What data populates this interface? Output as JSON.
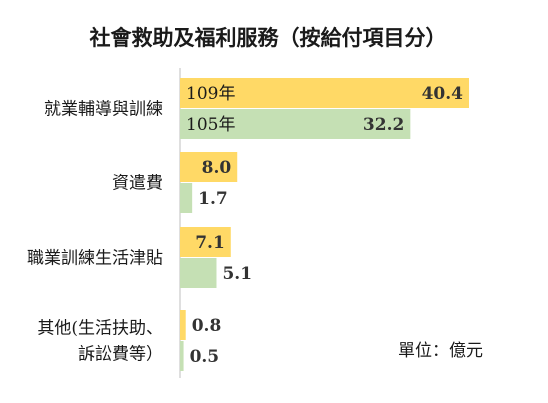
{
  "chart_data": {
    "type": "bar",
    "orientation": "horizontal",
    "title": "社會救助及福利服務（按給付項目分）",
    "unit_label": "單位：億元",
    "categories": [
      [
        "就業輔導與訓練"
      ],
      [
        "資遣費"
      ],
      [
        "職業訓練生活津貼"
      ],
      [
        "其他(生活扶助、",
        "訴訟費等）"
      ]
    ],
    "series": [
      {
        "name": "109年",
        "color": "#FFD966",
        "values": [
          40.4,
          8.0,
          7.1,
          0.8
        ],
        "value_labels": [
          "40.4",
          "8.0",
          "7.1",
          "0.8"
        ]
      },
      {
        "name": "105年",
        "color": "#C5E0B4",
        "values": [
          32.2,
          1.7,
          5.1,
          0.5
        ],
        "value_labels": [
          "32.2",
          "1.7",
          "5.1",
          "0.5"
        ]
      }
    ],
    "xlim": [
      0,
      45
    ],
    "grid": false,
    "legend": "none"
  }
}
